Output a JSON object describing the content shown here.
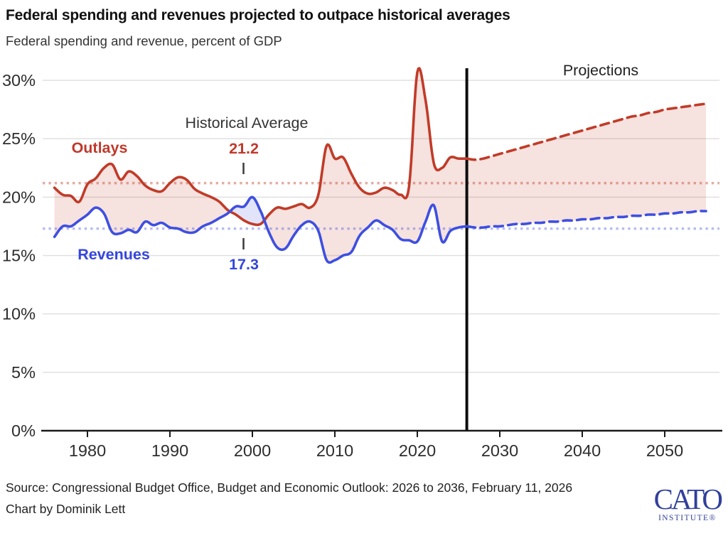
{
  "header": {
    "title": "Federal spending and revenues projected to outpace historical averages",
    "subtitle": "Federal spending and revenue, percent of GDP"
  },
  "chart_data": {
    "type": "line",
    "title": "Federal spending and revenues projected to outpace historical averages",
    "subtitle": "Federal spending and revenue, percent of GDP",
    "ylabel": "percent of GDP",
    "ylim": [
      0,
      30
    ],
    "yticks": [
      0,
      5,
      10,
      15,
      20,
      25,
      30
    ],
    "ytick_suffix": "%",
    "xticks": [
      1980,
      1990,
      2000,
      2010,
      2020,
      2030,
      2040,
      2050
    ],
    "x_range": [
      1976,
      2055
    ],
    "projection_start_year": 2026,
    "grid": "horizontal",
    "years": [
      1976,
      1977,
      1978,
      1979,
      1980,
      1981,
      1982,
      1983,
      1984,
      1985,
      1986,
      1987,
      1988,
      1989,
      1990,
      1991,
      1992,
      1993,
      1994,
      1995,
      1996,
      1997,
      1998,
      1999,
      2000,
      2001,
      2002,
      2003,
      2004,
      2005,
      2006,
      2007,
      2008,
      2009,
      2010,
      2011,
      2012,
      2013,
      2014,
      2015,
      2016,
      2017,
      2018,
      2019,
      2020,
      2021,
      2022,
      2023,
      2024,
      2025,
      2026,
      2027,
      2028,
      2029,
      2030,
      2031,
      2032,
      2033,
      2034,
      2035,
      2036,
      2037,
      2038,
      2039,
      2040,
      2041,
      2042,
      2043,
      2044,
      2045,
      2046,
      2047,
      2048,
      2049,
      2050,
      2051,
      2052,
      2053,
      2054,
      2055
    ],
    "series": [
      {
        "name": "Outlays",
        "color": "#c13b28",
        "values": [
          20.8,
          20.2,
          20.1,
          19.6,
          21.1,
          21.6,
          22.5,
          22.8,
          21.5,
          22.2,
          21.8,
          21.0,
          20.6,
          20.5,
          21.2,
          21.7,
          21.5,
          20.7,
          20.3,
          20.0,
          19.6,
          18.9,
          18.5,
          18.0,
          17.7,
          17.7,
          18.5,
          19.1,
          19.0,
          19.2,
          19.4,
          19.1,
          20.2,
          24.4,
          23.3,
          23.4,
          22.0,
          20.8,
          20.3,
          20.4,
          20.8,
          20.6,
          20.2,
          20.9,
          30.7,
          28.3,
          22.9,
          22.5,
          23.4,
          23.3,
          23.3,
          23.2,
          23.3,
          23.5,
          23.7,
          23.9,
          24.1,
          24.3,
          24.5,
          24.7,
          24.9,
          25.1,
          25.3,
          25.5,
          25.7,
          25.9,
          26.1,
          26.3,
          26.5,
          26.7,
          26.9,
          27.0,
          27.2,
          27.3,
          27.5,
          27.6,
          27.7,
          27.8,
          27.9,
          28.0
        ]
      },
      {
        "name": "Revenues",
        "color": "#3e4fe0",
        "values": [
          16.6,
          17.5,
          17.5,
          18.0,
          18.5,
          19.1,
          18.6,
          17.0,
          16.9,
          17.2,
          17.0,
          17.9,
          17.6,
          17.8,
          17.4,
          17.3,
          17.0,
          17.0,
          17.5,
          17.8,
          18.2,
          18.6,
          19.2,
          19.2,
          20.0,
          18.8,
          17.0,
          15.7,
          15.6,
          16.7,
          17.6,
          17.9,
          17.1,
          14.6,
          14.6,
          15.0,
          15.3,
          16.7,
          17.4,
          18.0,
          17.6,
          17.2,
          16.4,
          16.3,
          16.2,
          17.9,
          19.3,
          16.2,
          17.1,
          17.4,
          17.5,
          17.4,
          17.4,
          17.5,
          17.5,
          17.6,
          17.7,
          17.7,
          17.8,
          17.8,
          17.9,
          17.9,
          18.0,
          18.0,
          18.1,
          18.1,
          18.2,
          18.2,
          18.3,
          18.3,
          18.4,
          18.4,
          18.5,
          18.5,
          18.6,
          18.6,
          18.7,
          18.7,
          18.8,
          18.8
        ]
      }
    ],
    "historical_averages": [
      {
        "series": "Outlays",
        "value": 21.2,
        "label": "21.2",
        "color": "#c13b28"
      },
      {
        "series": "Revenues",
        "value": 17.3,
        "label": "17.3",
        "color": "#3e4fe0"
      }
    ],
    "annotations": {
      "projections": "Projections",
      "historical_average": "Historical Average",
      "outlays": "Outlays",
      "revenues": "Revenues",
      "outlays_avg": "21.2",
      "revenues_avg": "17.3"
    },
    "colors": {
      "outlays_line": "#c13b28",
      "revenues_line": "#3e4fe0",
      "deficit_fill": "rgba(193,59,40,0.15)",
      "surplus_fill": "rgba(62,79,224,0.15)",
      "divider": "#0d0d0d",
      "grid": "#e0e0e0",
      "axis": "#1a1a1a",
      "annotation_text": "#333333"
    },
    "legend_position": "inline-labels"
  },
  "footer": {
    "source": "Source: Congressional Budget Office, Budget and Economic Outlook: 2026 to 2036, February 11, 2026",
    "credit": "Chart by Dominik Lett",
    "logo": {
      "line1": "CATO",
      "line2": "INSTITUTE®"
    }
  }
}
